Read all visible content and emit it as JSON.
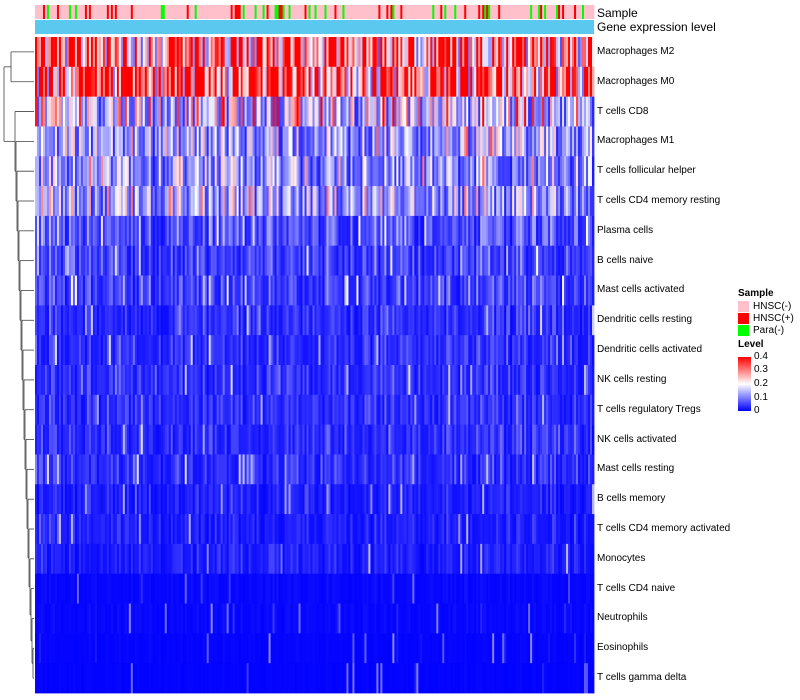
{
  "chart_data": {
    "type": "heatmap",
    "title": "",
    "annotations": [
      {
        "name": "Sample",
        "categories": [
          "HNSC(-)",
          "HNSC(+)",
          "Para(-)"
        ]
      },
      {
        "name": "Gene expression level"
      }
    ],
    "rows": [
      {
        "label": "Macrophages M2",
        "mean": 0.27
      },
      {
        "label": "Macrophages M0",
        "mean": 0.3
      },
      {
        "label": "T cells CD8",
        "mean": 0.14
      },
      {
        "label": "Macrophages M1",
        "mean": 0.1
      },
      {
        "label": "T cells follicular helper",
        "mean": 0.09
      },
      {
        "label": "T cells CD4 memory resting",
        "mean": 0.1
      },
      {
        "label": "Plasma cells",
        "mean": 0.05
      },
      {
        "label": "B cells naive",
        "mean": 0.04
      },
      {
        "label": "Mast cells activated",
        "mean": 0.04
      },
      {
        "label": "Dendritic cells resting",
        "mean": 0.03
      },
      {
        "label": "Dendritic cells activated",
        "mean": 0.03
      },
      {
        "label": "NK cells resting",
        "mean": 0.03
      },
      {
        "label": "T cells regulatory  Tregs",
        "mean": 0.03
      },
      {
        "label": "NK cells activated",
        "mean": 0.03
      },
      {
        "label": "Mast cells resting",
        "mean": 0.03
      },
      {
        "label": "B cells memory",
        "mean": 0.02
      },
      {
        "label": "T cells CD4 memory activated",
        "mean": 0.02
      },
      {
        "label": "Monocytes",
        "mean": 0.02
      },
      {
        "label": "T cells CD4 naive",
        "mean": 0.005
      },
      {
        "label": "Neutrophils",
        "mean": 0.005
      },
      {
        "label": "Eosinophils",
        "mean": 0.003
      },
      {
        "label": "T cells gamma delta",
        "mean": 0.002
      }
    ],
    "legend": {
      "sample_title": "Sample",
      "sample_items": [
        {
          "label": "HNSC(-)",
          "color": "#ffc0cb"
        },
        {
          "label": "HNSC(+)",
          "color": "#ff0000"
        },
        {
          "label": "Para(-)",
          "color": "#00ff00"
        }
      ],
      "level_title": "Level",
      "level_ticks": [
        "0.4",
        "0.3",
        "0.2",
        "0.1",
        "0"
      ],
      "level_range": [
        0,
        0.4
      ],
      "colors": {
        "low": "#0000ff",
        "mid": "#ffffff",
        "high": "#ff0000"
      }
    },
    "expression_color": "#5bc8f0"
  }
}
